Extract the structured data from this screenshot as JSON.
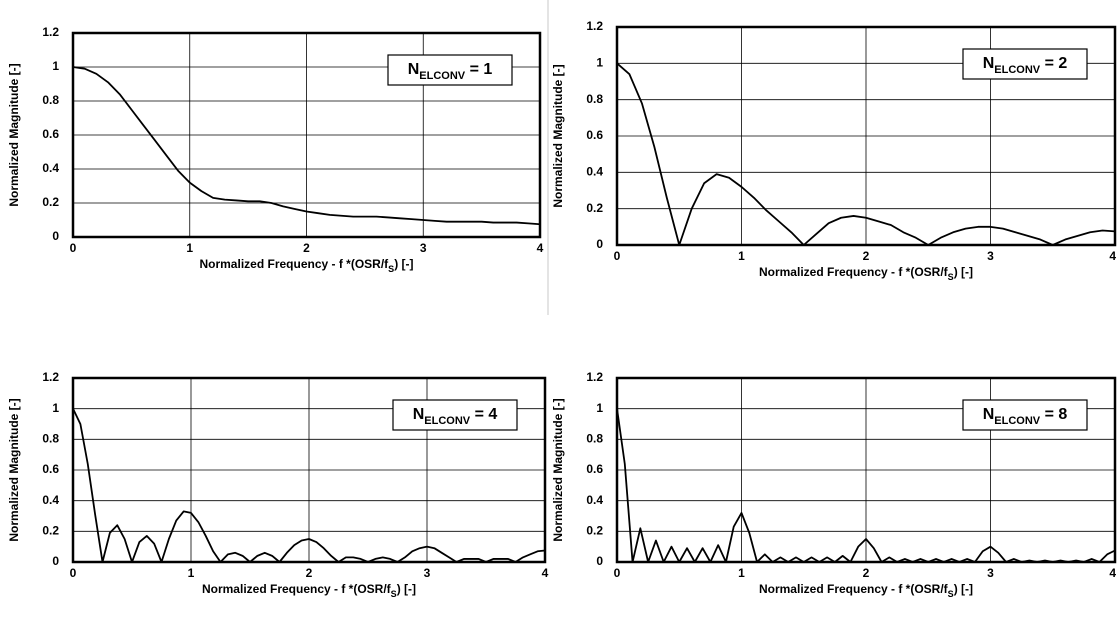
{
  "chart_data": [
    {
      "type": "line",
      "ylabel": "Normalized Magnitude [-]",
      "xlabel": {
        "text": "Normalized Frequency - f *(OSR/f",
        "sub": "S",
        "tail": ") [-]"
      },
      "annotation": {
        "text": "N",
        "sub": "ELCONV",
        "tail": " = 1"
      },
      "xlim": [
        0,
        4
      ],
      "ylim": [
        0,
        1.2
      ],
      "xticks": [
        0,
        1,
        2,
        3,
        4
      ],
      "yticks": [
        0,
        0.2,
        0.4,
        0.6,
        0.8,
        1,
        1.2
      ],
      "grid": true,
      "color": "#000000",
      "x": [
        0,
        0.1,
        0.2,
        0.3,
        0.4,
        0.5,
        0.6,
        0.7,
        0.8,
        0.9,
        1,
        1.1,
        1.2,
        1.3,
        1.4,
        1.5,
        1.6,
        1.7,
        1.8,
        1.9,
        2,
        2.1,
        2.2,
        2.3,
        2.4,
        2.5,
        2.6,
        2.7,
        2.8,
        2.9,
        3,
        3.1,
        3.2,
        3.3,
        3.4,
        3.5,
        3.6,
        3.7,
        3.8,
        3.9,
        4
      ],
      "values": [
        1,
        0.99,
        0.96,
        0.91,
        0.84,
        0.75,
        0.66,
        0.57,
        0.48,
        0.39,
        0.32,
        0.27,
        0.23,
        0.22,
        0.215,
        0.21,
        0.21,
        0.2,
        0.18,
        0.165,
        0.15,
        0.14,
        0.13,
        0.125,
        0.12,
        0.12,
        0.12,
        0.115,
        0.11,
        0.105,
        0.1,
        0.095,
        0.09,
        0.09,
        0.09,
        0.09,
        0.085,
        0.085,
        0.085,
        0.08,
        0.075
      ]
    },
    {
      "type": "line",
      "ylabel": "Normalized Magnitude [-]",
      "xlabel": {
        "text": "Normalized Frequency - f *(OSR/f",
        "sub": "S",
        "tail": ") [-]"
      },
      "annotation": {
        "text": "N",
        "sub": "ELCONV",
        "tail": " = 2"
      },
      "xlim": [
        0,
        4
      ],
      "ylim": [
        0,
        1.2
      ],
      "xticks": [
        0,
        1,
        2,
        3,
        4
      ],
      "yticks": [
        0,
        0.2,
        0.4,
        0.6,
        0.8,
        1,
        1.2
      ],
      "grid": true,
      "color": "#000000",
      "x": [
        0,
        0.1,
        0.2,
        0.3,
        0.4,
        0.5,
        0.6,
        0.7,
        0.8,
        0.9,
        1,
        1.1,
        1.2,
        1.3,
        1.4,
        1.5,
        1.6,
        1.7,
        1.8,
        1.9,
        2,
        2.1,
        2.2,
        2.3,
        2.4,
        2.5,
        2.6,
        2.7,
        2.8,
        2.9,
        3,
        3.1,
        3.2,
        3.3,
        3.4,
        3.5,
        3.6,
        3.7,
        3.8,
        3.9,
        4
      ],
      "values": [
        1,
        0.94,
        0.78,
        0.54,
        0.26,
        0,
        0.2,
        0.34,
        0.39,
        0.37,
        0.32,
        0.26,
        0.19,
        0.13,
        0.07,
        0,
        0.06,
        0.12,
        0.15,
        0.16,
        0.15,
        0.13,
        0.11,
        0.07,
        0.04,
        0,
        0.04,
        0.07,
        0.09,
        0.1,
        0.1,
        0.09,
        0.07,
        0.05,
        0.03,
        0,
        0.03,
        0.05,
        0.07,
        0.08,
        0.075
      ]
    },
    {
      "type": "line",
      "ylabel": "Normalized Magnitude [-]",
      "xlabel": {
        "text": "Normalized Frequency - f *(OSR/f",
        "sub": "S",
        "tail": ") [-]"
      },
      "annotation": {
        "text": "N",
        "sub": "ELCONV",
        "tail": " = 4"
      },
      "xlim": [
        0,
        4
      ],
      "ylim": [
        0,
        1.2
      ],
      "xticks": [
        0,
        1,
        2,
        3,
        4
      ],
      "yticks": [
        0,
        0.2,
        0.4,
        0.6,
        0.8,
        1,
        1.2
      ],
      "grid": true,
      "color": "#000000",
      "x": [
        0,
        0.0625,
        0.125,
        0.1875,
        0.25,
        0.3125,
        0.375,
        0.4375,
        0.5,
        0.5625,
        0.625,
        0.6875,
        0.75,
        0.8125,
        0.875,
        0.9375,
        1,
        1.0625,
        1.125,
        1.1875,
        1.25,
        1.3125,
        1.375,
        1.4375,
        1.5,
        1.5625,
        1.625,
        1.6875,
        1.75,
        1.8125,
        1.875,
        1.9375,
        2,
        2.0625,
        2.125,
        2.1875,
        2.25,
        2.3125,
        2.375,
        2.4375,
        2.5,
        2.5625,
        2.625,
        2.6875,
        2.75,
        2.8125,
        2.875,
        2.9375,
        3,
        3.0625,
        3.125,
        3.1875,
        3.25,
        3.3125,
        3.375,
        3.4375,
        3.5,
        3.5625,
        3.625,
        3.6875,
        3.75,
        3.8125,
        3.875,
        3.9375,
        4
      ],
      "values": [
        1,
        0.9,
        0.64,
        0.31,
        0,
        0.19,
        0.24,
        0.15,
        0,
        0.13,
        0.17,
        0.12,
        0,
        0.15,
        0.27,
        0.33,
        0.32,
        0.26,
        0.17,
        0.07,
        0,
        0.05,
        0.06,
        0.04,
        0,
        0.04,
        0.06,
        0.04,
        0,
        0.06,
        0.11,
        0.14,
        0.15,
        0.13,
        0.09,
        0.04,
        0,
        0.03,
        0.03,
        0.02,
        0,
        0.02,
        0.03,
        0.02,
        0,
        0.03,
        0.07,
        0.09,
        0.1,
        0.09,
        0.06,
        0.03,
        0,
        0.02,
        0.02,
        0.02,
        0,
        0.02,
        0.02,
        0.02,
        0,
        0.03,
        0.05,
        0.07,
        0.075
      ]
    },
    {
      "type": "line",
      "ylabel": "Normalized Magnitude [-]",
      "xlabel": {
        "text": "Normalized Frequency - f *(OSR/f",
        "sub": "S",
        "tail": ") [-]"
      },
      "annotation": {
        "text": "N",
        "sub": "ELCONV",
        "tail": " = 8"
      },
      "xlim": [
        0,
        4
      ],
      "ylim": [
        0,
        1.2
      ],
      "xticks": [
        0,
        1,
        2,
        3,
        4
      ],
      "yticks": [
        0,
        0.2,
        0.4,
        0.6,
        0.8,
        1,
        1.2
      ],
      "grid": true,
      "color": "#000000",
      "x": [
        0,
        0.0625,
        0.125,
        0.1875,
        0.25,
        0.3125,
        0.375,
        0.4375,
        0.5,
        0.5625,
        0.625,
        0.6875,
        0.75,
        0.8125,
        0.875,
        0.9375,
        1,
        1.0625,
        1.125,
        1.1875,
        1.25,
        1.3125,
        1.375,
        1.4375,
        1.5,
        1.5625,
        1.625,
        1.6875,
        1.75,
        1.8125,
        1.875,
        1.9375,
        2,
        2.0625,
        2.125,
        2.1875,
        2.25,
        2.3125,
        2.375,
        2.4375,
        2.5,
        2.5625,
        2.625,
        2.6875,
        2.75,
        2.8125,
        2.875,
        2.9375,
        3,
        3.0625,
        3.125,
        3.1875,
        3.25,
        3.3125,
        3.375,
        3.4375,
        3.5,
        3.5625,
        3.625,
        3.6875,
        3.75,
        3.8125,
        3.875,
        3.9375,
        4
      ],
      "values": [
        1,
        0.64,
        0,
        0.22,
        0,
        0.14,
        0,
        0.1,
        0,
        0.09,
        0,
        0.09,
        0,
        0.11,
        0,
        0.23,
        0.32,
        0.19,
        0,
        0.05,
        0,
        0.03,
        0,
        0.03,
        0,
        0.03,
        0,
        0.03,
        0,
        0.04,
        0,
        0.1,
        0.15,
        0.09,
        0,
        0.03,
        0,
        0.02,
        0,
        0.02,
        0,
        0.02,
        0,
        0.02,
        0,
        0.02,
        0,
        0.07,
        0.1,
        0.06,
        0,
        0.02,
        0,
        0.01,
        0,
        0.01,
        0,
        0.01,
        0,
        0.01,
        0,
        0.02,
        0,
        0.05,
        0.075
      ]
    }
  ]
}
